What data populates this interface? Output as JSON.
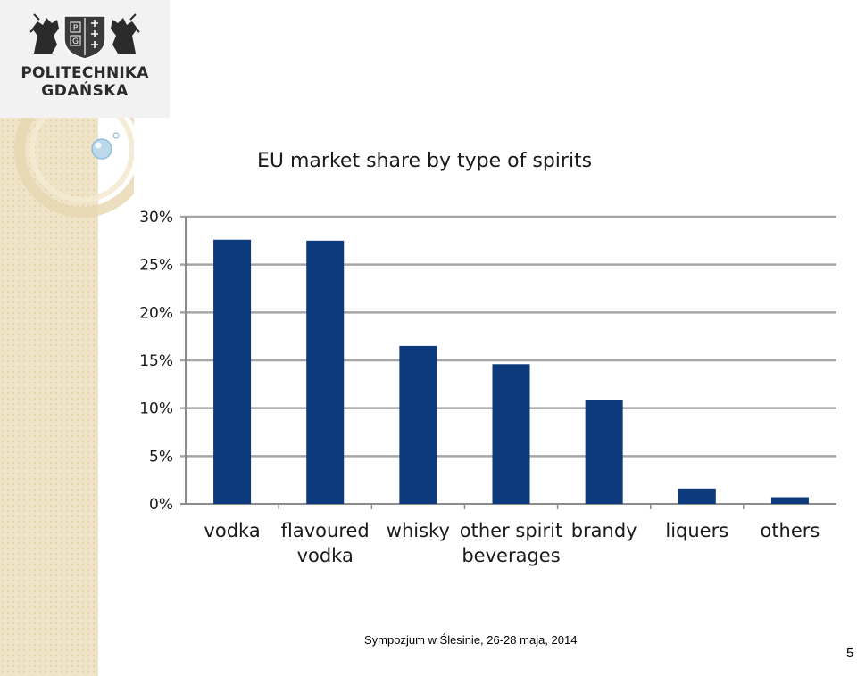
{
  "logo": {
    "line1": "POLITECHNIKA",
    "line2": "GDAŃSKA",
    "shield_text": [
      "P",
      "G"
    ]
  },
  "footer": {
    "text": "Sympozjum w Ślesinie, 26-28 maja, 2014",
    "page_number": "5"
  },
  "chart_data": {
    "type": "bar",
    "title": "EU market share by type of spirits",
    "categories": [
      [
        "vodka"
      ],
      [
        "flavoured",
        "vodka"
      ],
      [
        "whisky"
      ],
      [
        "other spirit",
        "beverages"
      ],
      [
        "brandy"
      ],
      [
        "liquers"
      ],
      [
        "others"
      ]
    ],
    "values": [
      27.6,
      27.5,
      16.5,
      14.6,
      10.9,
      1.6,
      0.7
    ],
    "ylim": [
      0,
      30
    ],
    "yticks": [
      "0%",
      "5%",
      "10%",
      "15%",
      "20%",
      "25%",
      "30%"
    ],
    "bar_color": "#0d3a7c",
    "grid": true
  }
}
